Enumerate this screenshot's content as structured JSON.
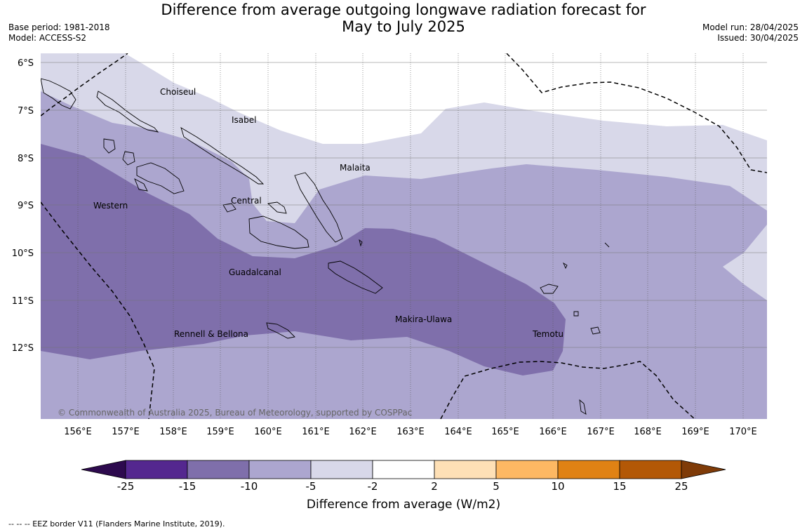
{
  "title_line1": "Difference from average outgoing longwave radiation forecast for",
  "title_line2": "May to July 2025",
  "base_period": "Base period: 1981-2018",
  "model": "Model: ACCESS-S2",
  "model_run": "Model run: 28/04/2025",
  "issued": "Issued: 30/04/2025",
  "copyright": "© Commonwealth of Australia 2025, Bureau of Meteorology, supported by COSPPac",
  "lat_labels": [
    "6°S",
    "7°S",
    "8°S",
    "9°S",
    "10°S",
    "11°S",
    "12°S"
  ],
  "lon_labels": [
    "156°E",
    "157°E",
    "158°E",
    "159°E",
    "160°E",
    "161°E",
    "162°E",
    "163°E",
    "164°E",
    "165°E",
    "166°E",
    "167°E",
    "168°E",
    "169°E",
    "170°E"
  ],
  "provinces": [
    "Choiseul",
    "Isabel",
    "Malaita",
    "Western",
    "Central",
    "Guadalcanal",
    "Makira-Ulawa",
    "Rennell & Bellona",
    "Temotu"
  ],
  "colorbar": {
    "ticks": [
      "-25",
      "-15",
      "-10",
      "-5",
      "-2",
      "2",
      "5",
      "10",
      "15",
      "25"
    ],
    "colors": [
      "#2d0a4e",
      "#54278f",
      "#7f6fab",
      "#aca6cf",
      "#d8d8e9",
      "#ffffff",
      "#fee0b6",
      "#fdb863",
      "#e08214",
      "#b35806",
      "#7f3b08"
    ],
    "label": "Difference from average (W/m2)"
  },
  "footnote": "--  --  -- EEZ border V11 (Flanders Marine Institute, 2019).",
  "palette": {
    "light": "#d8d8e9",
    "mid": "#aca6cf",
    "dark": "#7f6fab"
  }
}
